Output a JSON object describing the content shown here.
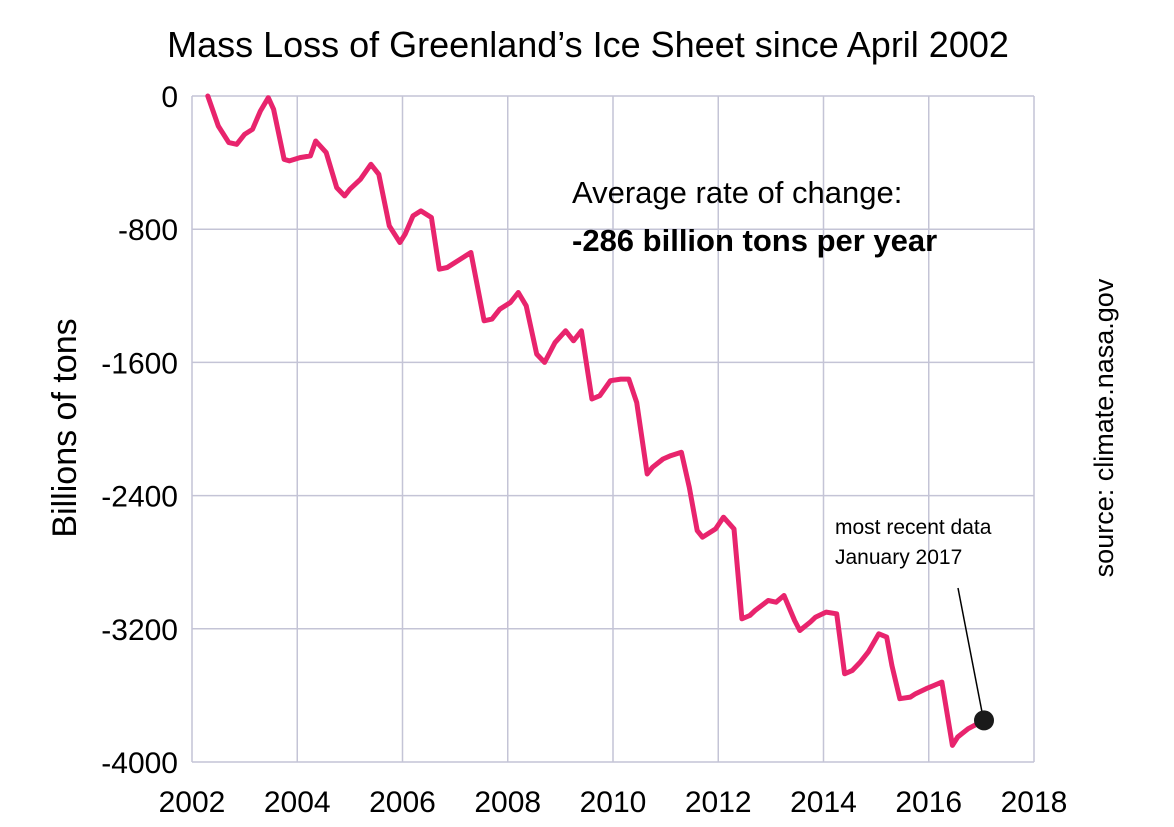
{
  "chart_data": {
    "type": "line",
    "title": "Mass Loss of Greenland’s Ice Sheet since April 2002",
    "ylabel": "Billions of tons",
    "xlabel": "",
    "xlim": [
      2002,
      2018
    ],
    "ylim": [
      -4000,
      0
    ],
    "x_ticks": [
      2002,
      2004,
      2006,
      2008,
      2010,
      2012,
      2014,
      2016,
      2018
    ],
    "y_ticks": [
      0,
      -800,
      -1600,
      -2400,
      -3200,
      -4000
    ],
    "x_tick_labels": [
      "2002",
      "2004",
      "2006",
      "2008",
      "2010",
      "2012",
      "2014",
      "2016",
      "2018"
    ],
    "y_tick_labels": [
      "0",
      "-800",
      "-1600",
      "-2400",
      "-3200",
      "-4000"
    ],
    "grid": true,
    "line_color": "#e8246d",
    "series": [
      {
        "x": [
          2002.3,
          2002.5,
          2002.7,
          2002.85,
          2003.0,
          2003.15,
          2003.3,
          2003.45,
          2003.55,
          2003.75,
          2003.85,
          2004.05,
          2004.25,
          2004.35,
          2004.55,
          2004.75,
          2004.9,
          2005.0,
          2005.2,
          2005.4,
          2005.55,
          2005.75,
          2005.95,
          2006.05,
          2006.2,
          2006.35,
          2006.55,
          2006.7,
          2006.85,
          2007.0,
          2007.2,
          2007.3,
          2007.55,
          2007.7,
          2007.85,
          2008.05,
          2008.2,
          2008.35,
          2008.55,
          2008.7,
          2008.9,
          2009.1,
          2009.25,
          2009.4,
          2009.6,
          2009.75,
          2009.95,
          2010.15,
          2010.3,
          2010.45,
          2010.65,
          2010.75,
          2010.95,
          2011.1,
          2011.3,
          2011.45,
          2011.6,
          2011.7,
          2011.95,
          2012.1,
          2012.3,
          2012.45,
          2012.6,
          2012.7,
          2012.95,
          2013.1,
          2013.25,
          2013.45,
          2013.55,
          2013.75,
          2013.85,
          2014.05,
          2014.25,
          2014.4,
          2014.55,
          2014.7,
          2014.85,
          2015.05,
          2015.2,
          2015.3,
          2015.45,
          2015.65,
          2015.75,
          2015.95,
          2016.1,
          2016.25,
          2016.45,
          2016.55,
          2016.75,
          2017.05
        ],
        "values": [
          0,
          -180,
          -280,
          -290,
          -230,
          -200,
          -90,
          -10,
          -80,
          -380,
          -390,
          -370,
          -360,
          -270,
          -340,
          -550,
          -600,
          -560,
          -500,
          -410,
          -470,
          -780,
          -880,
          -830,
          -720,
          -690,
          -730,
          -1040,
          -1030,
          -1000,
          -960,
          -940,
          -1350,
          -1340,
          -1280,
          -1240,
          -1180,
          -1260,
          -1550,
          -1600,
          -1480,
          -1410,
          -1470,
          -1410,
          -1820,
          -1800,
          -1710,
          -1700,
          -1700,
          -1840,
          -2270,
          -2230,
          -2180,
          -2160,
          -2140,
          -2350,
          -2610,
          -2650,
          -2600,
          -2530,
          -2600,
          -3140,
          -3120,
          -3090,
          -3030,
          -3040,
          -3000,
          -3150,
          -3210,
          -3160,
          -3130,
          -3100,
          -3110,
          -3470,
          -3450,
          -3400,
          -3340,
          -3230,
          -3250,
          -3420,
          -3620,
          -3610,
          -3590,
          -3560,
          -3540,
          -3520,
          -3900,
          -3850,
          -3800,
          -3750
        ]
      }
    ],
    "marker": {
      "x": 2017.05,
      "y": -3750,
      "color": "#1a1a1a"
    }
  },
  "annotation": {
    "rate_label": "Average rate of change:",
    "rate_value": "-286 billion tons per year",
    "note_line1": "most recent data",
    "note_line2": "January 2017"
  },
  "source": "source: climate.nasa.gov"
}
